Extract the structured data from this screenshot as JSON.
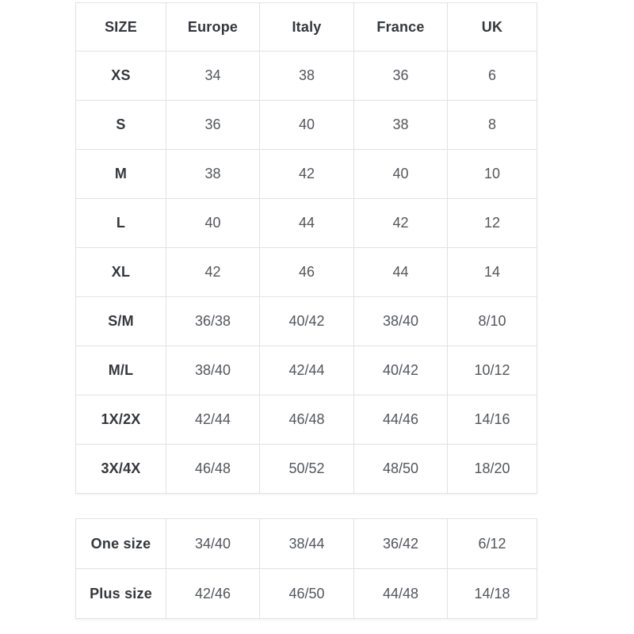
{
  "chart_data": [
    {
      "type": "table",
      "title": "",
      "columns": [
        "SIZE",
        "Europe",
        "Italy",
        "France",
        "UK"
      ],
      "rows": [
        [
          "XS",
          "34",
          "38",
          "36",
          "6"
        ],
        [
          "S",
          "36",
          "40",
          "38",
          "8"
        ],
        [
          "M",
          "38",
          "42",
          "40",
          "10"
        ],
        [
          "L",
          "40",
          "44",
          "42",
          "12"
        ],
        [
          "XL",
          "42",
          "46",
          "44",
          "14"
        ],
        [
          "S/M",
          "36/38",
          "40/42",
          "38/40",
          "8/10"
        ],
        [
          "M/L",
          "38/40",
          "42/44",
          "40/42",
          "10/12"
        ],
        [
          "1X/2X",
          "42/44",
          "46/48",
          "44/46",
          "14/16"
        ],
        [
          "3X/4X",
          "46/48",
          "50/52",
          "48/50",
          "18/20"
        ]
      ]
    },
    {
      "type": "table",
      "title": "",
      "columns": [],
      "rows": [
        [
          "One size",
          "34/40",
          "38/44",
          "36/42",
          "6/12"
        ],
        [
          "Plus size",
          "42/46",
          "46/50",
          "44/48",
          "14/18"
        ]
      ]
    }
  ],
  "colors": {
    "background": "#ffffff",
    "border": "#e2e2e2",
    "header_text": "#35373c",
    "cell_text": "#54565c"
  }
}
